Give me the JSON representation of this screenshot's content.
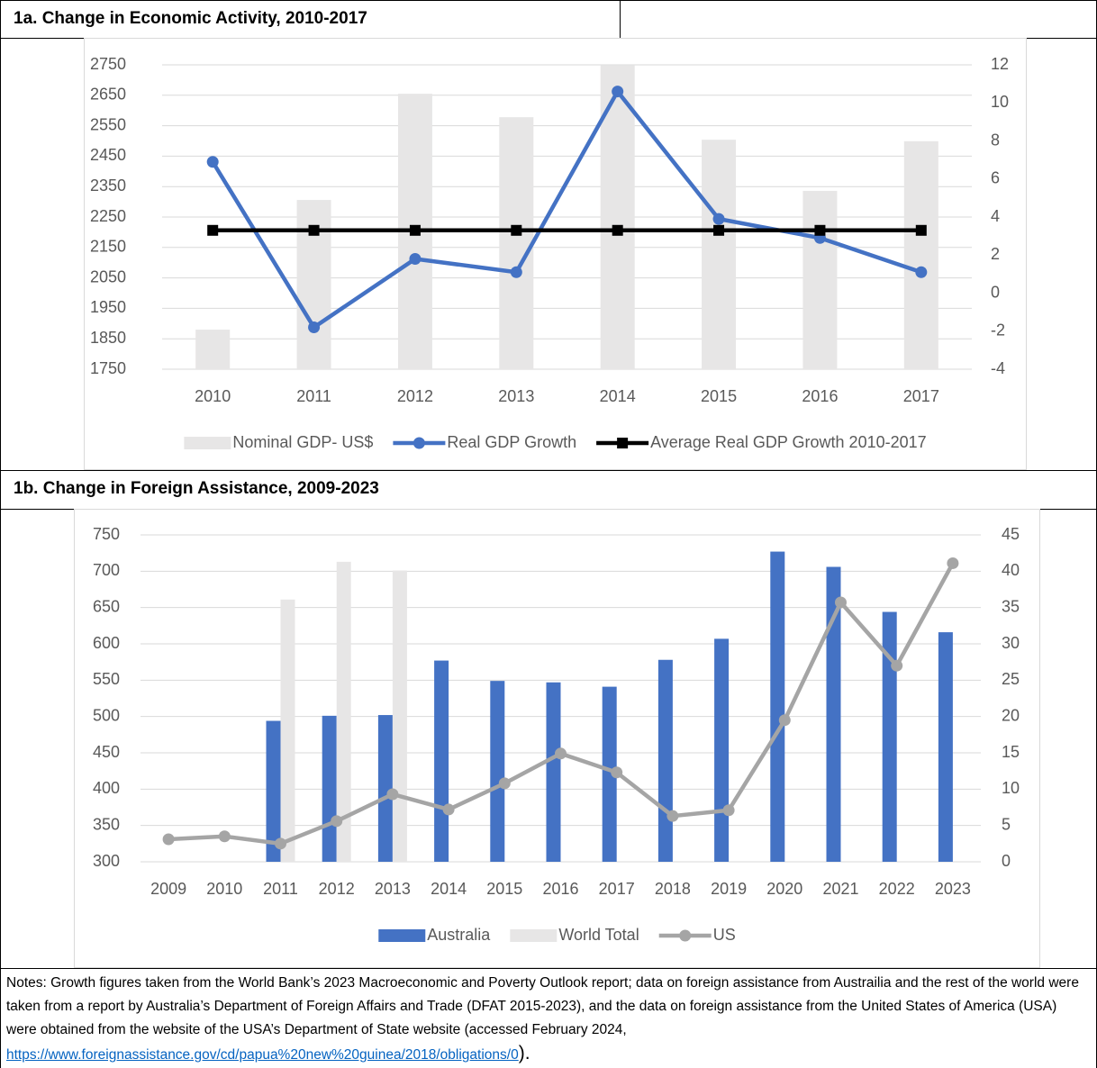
{
  "chart_data": [
    {
      "type": "combo",
      "title": "1a.  Change in Economic Activity, 2010-2017",
      "categories": [
        "2010",
        "2011",
        "2012",
        "2013",
        "2014",
        "2015",
        "2016",
        "2017"
      ],
      "series": [
        {
          "name": "Nominal GDP- US$",
          "type": "bar",
          "axis": "y",
          "color": "#e7e6e6",
          "values": [
            1880,
            2306,
            2655,
            2578,
            2748,
            2504,
            2336,
            2499
          ]
        },
        {
          "name": "Real GDP Growth",
          "type": "line",
          "axis": "y2",
          "marker": "circle",
          "color": "#4472c4",
          "values": [
            6.9,
            -1.8,
            1.8,
            1.1,
            10.6,
            3.9,
            2.9,
            1.1
          ]
        },
        {
          "name": "Average Real GDP Growth 2010-2017",
          "type": "line",
          "axis": "y2",
          "marker": "square",
          "color": "#000000",
          "values": [
            3.3,
            3.3,
            3.3,
            3.3,
            3.3,
            3.3,
            3.3,
            3.3
          ]
        }
      ],
      "ylim": [
        1750,
        2750
      ],
      "yticks": [
        1750,
        1850,
        1950,
        2050,
        2150,
        2250,
        2350,
        2450,
        2550,
        2650,
        2750
      ],
      "y2lim": [
        -4,
        12
      ],
      "y2ticks": [
        -4,
        -2,
        0,
        2,
        4,
        6,
        8,
        10,
        12
      ],
      "grid": true,
      "legend": "bottom"
    },
    {
      "type": "combo",
      "title": "1b.  Change in Foreign Assistance, 2009-2023",
      "categories": [
        "2009",
        "2010",
        "2011",
        "2012",
        "2013",
        "2014",
        "2015",
        "2016",
        "2017",
        "2018",
        "2019",
        "2020",
        "2021",
        "2022",
        "2023"
      ],
      "series": [
        {
          "name": "Australia",
          "type": "bar",
          "axis": "y",
          "color": "#4472c4",
          "values": [
            null,
            null,
            494,
            501,
            502,
            577,
            549,
            547,
            541,
            578,
            607,
            727,
            706,
            644,
            616
          ]
        },
        {
          "name": "World Total",
          "type": "bar",
          "axis": "y",
          "color": "#e7e6e6",
          "values": [
            null,
            null,
            661,
            713,
            701,
            null,
            null,
            null,
            null,
            null,
            null,
            null,
            null,
            null,
            null
          ]
        },
        {
          "name": "US",
          "type": "line",
          "axis": "y2",
          "marker": "circle",
          "color": "#a5a5a5",
          "values": [
            3.1,
            3.5,
            2.5,
            5.6,
            9.3,
            7.2,
            10.8,
            14.9,
            12.3,
            6.3,
            7.1,
            19.5,
            35.7,
            27.0,
            41.1
          ]
        }
      ],
      "ylim": [
        300,
        750
      ],
      "yticks": [
        300,
        350,
        400,
        450,
        500,
        550,
        600,
        650,
        700,
        750
      ],
      "y2lim": [
        0,
        45
      ],
      "y2ticks": [
        0,
        5,
        10,
        15,
        20,
        25,
        30,
        35,
        40,
        45
      ],
      "grid": true,
      "legend": "bottom"
    }
  ],
  "notes": {
    "text": "Notes: Growth figures taken from the World Bank’s 2023 Macroeconomic and Poverty Outlook report; data on foreign assistance from Austrailia and the rest of the world were taken from a report by Australia’s Department of Foreign Affairs and Trade (DFAT 2015-2023), and the data on foreign assistance from the United States of America (USA) were obtained from the website of the USA’s Department of State website (accessed February 2024,",
    "link": "https://www.foreignassistance.gov/cd/papua%20new%20guinea/2018/obligations/0",
    "tail": ")."
  }
}
